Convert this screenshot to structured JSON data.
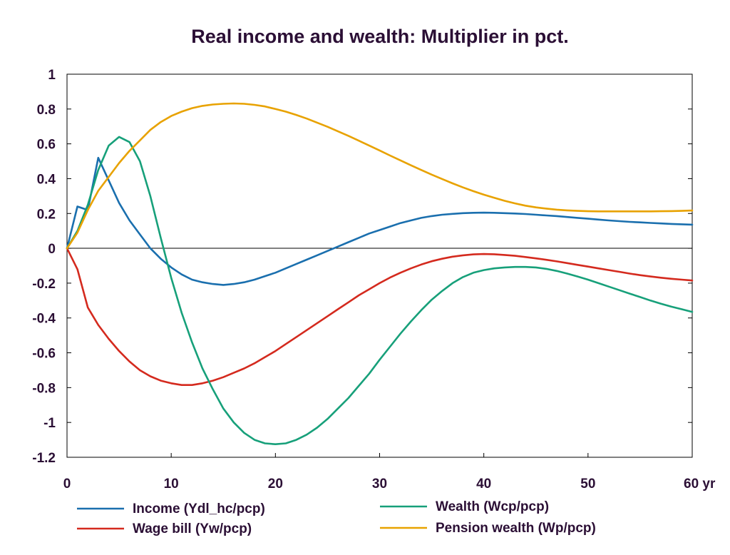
{
  "chart_data": {
    "type": "line",
    "title": "Real income and wealth: Multiplier in pct.",
    "xlabel": "",
    "ylabel": "",
    "xlim": [
      0,
      60
    ],
    "ylim": [
      -1.2,
      1
    ],
    "x_ticks": [
      0,
      10,
      20,
      30,
      40,
      50,
      60
    ],
    "x_tick_labels": [
      "0",
      "10",
      "20",
      "30",
      "40",
      "50",
      "60 yr"
    ],
    "y_ticks": [
      1,
      0.8,
      0.6,
      0.4,
      0.2,
      0,
      -0.2,
      -0.4,
      -0.6,
      -0.8,
      -1,
      -1.2
    ],
    "y_tick_labels": [
      "1",
      "0.8",
      "0.6",
      "0.4",
      "0.2",
      "0",
      "-0.2",
      "-0.4",
      "-0.6",
      "-0.8",
      "-1",
      "-1.2"
    ],
    "grid": false,
    "zero_line": true,
    "legend_position": "bottom",
    "series": [
      {
        "name": "Income (Ydl_hc/pcp)",
        "color": "#1a6fae",
        "x": [
          0,
          1,
          2,
          3,
          4,
          5,
          6,
          7,
          8,
          9,
          10,
          11,
          12,
          13,
          14,
          15,
          16,
          17,
          18,
          19,
          20,
          21,
          22,
          23,
          24,
          25,
          26,
          27,
          28,
          29,
          30,
          31,
          32,
          33,
          34,
          35,
          36,
          37,
          38,
          39,
          40,
          41,
          42,
          43,
          44,
          45,
          46,
          47,
          48,
          49,
          50,
          51,
          52,
          53,
          54,
          55,
          56,
          57,
          58,
          59,
          60
        ],
        "y": [
          0,
          0.24,
          0.22,
          0.52,
          0.39,
          0.26,
          0.16,
          0.08,
          0.0,
          -0.06,
          -0.11,
          -0.15,
          -0.18,
          -0.195,
          -0.205,
          -0.21,
          -0.205,
          -0.195,
          -0.18,
          -0.16,
          -0.14,
          -0.115,
          -0.09,
          -0.065,
          -0.04,
          -0.015,
          0.01,
          0.035,
          0.06,
          0.085,
          0.105,
          0.125,
          0.145,
          0.16,
          0.175,
          0.185,
          0.193,
          0.198,
          0.202,
          0.204,
          0.205,
          0.204,
          0.202,
          0.2,
          0.197,
          0.193,
          0.189,
          0.185,
          0.18,
          0.175,
          0.17,
          0.165,
          0.16,
          0.156,
          0.152,
          0.149,
          0.146,
          0.143,
          0.14,
          0.138,
          0.136
        ]
      },
      {
        "name": "Wage bill (Yw/pcp)",
        "color": "#d42a1e",
        "x": [
          0,
          1,
          2,
          3,
          4,
          5,
          6,
          7,
          8,
          9,
          10,
          11,
          12,
          13,
          14,
          15,
          16,
          17,
          18,
          19,
          20,
          21,
          22,
          23,
          24,
          25,
          26,
          27,
          28,
          29,
          30,
          31,
          32,
          33,
          34,
          35,
          36,
          37,
          38,
          39,
          40,
          41,
          42,
          43,
          44,
          45,
          46,
          47,
          48,
          49,
          50,
          51,
          52,
          53,
          54,
          55,
          56,
          57,
          58,
          59,
          60
        ],
        "y": [
          0,
          -0.12,
          -0.34,
          -0.44,
          -0.52,
          -0.59,
          -0.65,
          -0.7,
          -0.735,
          -0.76,
          -0.775,
          -0.785,
          -0.785,
          -0.775,
          -0.76,
          -0.74,
          -0.715,
          -0.69,
          -0.66,
          -0.625,
          -0.59,
          -0.55,
          -0.51,
          -0.47,
          -0.43,
          -0.39,
          -0.35,
          -0.31,
          -0.27,
          -0.235,
          -0.2,
          -0.168,
          -0.14,
          -0.115,
          -0.093,
          -0.074,
          -0.06,
          -0.048,
          -0.04,
          -0.035,
          -0.033,
          -0.034,
          -0.038,
          -0.043,
          -0.05,
          -0.058,
          -0.066,
          -0.075,
          -0.085,
          -0.095,
          -0.105,
          -0.115,
          -0.125,
          -0.135,
          -0.145,
          -0.154,
          -0.162,
          -0.169,
          -0.175,
          -0.18,
          -0.185
        ]
      },
      {
        "name": "Wealth (Wcp/pcp)",
        "color": "#17a07a",
        "x": [
          0,
          1,
          2,
          3,
          4,
          5,
          6,
          7,
          8,
          9,
          10,
          11,
          12,
          13,
          14,
          15,
          16,
          17,
          18,
          19,
          20,
          21,
          22,
          23,
          24,
          25,
          26,
          27,
          28,
          29,
          30,
          31,
          32,
          33,
          34,
          35,
          36,
          37,
          38,
          39,
          40,
          41,
          42,
          43,
          44,
          45,
          46,
          47,
          48,
          49,
          50,
          51,
          52,
          53,
          54,
          55,
          56,
          57,
          58,
          59,
          60
        ],
        "y": [
          0,
          0.1,
          0.25,
          0.45,
          0.59,
          0.64,
          0.61,
          0.5,
          0.3,
          0.06,
          -0.17,
          -0.37,
          -0.54,
          -0.69,
          -0.81,
          -0.92,
          -1.0,
          -1.06,
          -1.1,
          -1.12,
          -1.125,
          -1.12,
          -1.1,
          -1.07,
          -1.03,
          -0.98,
          -0.92,
          -0.86,
          -0.79,
          -0.72,
          -0.64,
          -0.565,
          -0.49,
          -0.42,
          -0.355,
          -0.295,
          -0.245,
          -0.2,
          -0.165,
          -0.14,
          -0.125,
          -0.115,
          -0.11,
          -0.107,
          -0.107,
          -0.11,
          -0.118,
          -0.13,
          -0.145,
          -0.162,
          -0.18,
          -0.2,
          -0.22,
          -0.24,
          -0.26,
          -0.28,
          -0.3,
          -0.318,
          -0.335,
          -0.35,
          -0.365
        ]
      },
      {
        "name": "Pension wealth (Wp/pcp)",
        "color": "#e8a200",
        "x": [
          0,
          1,
          2,
          3,
          4,
          5,
          6,
          7,
          8,
          9,
          10,
          11,
          12,
          13,
          14,
          15,
          16,
          17,
          18,
          19,
          20,
          21,
          22,
          23,
          24,
          25,
          26,
          27,
          28,
          29,
          30,
          31,
          32,
          33,
          34,
          35,
          36,
          37,
          38,
          39,
          40,
          41,
          42,
          43,
          44,
          45,
          46,
          47,
          48,
          49,
          50,
          51,
          52,
          53,
          54,
          55,
          56,
          57,
          58,
          59,
          60
        ],
        "y": [
          0,
          0.09,
          0.22,
          0.33,
          0.41,
          0.49,
          0.56,
          0.62,
          0.68,
          0.725,
          0.76,
          0.785,
          0.805,
          0.818,
          0.826,
          0.83,
          0.832,
          0.83,
          0.824,
          0.815,
          0.8,
          0.785,
          0.766,
          0.745,
          0.722,
          0.698,
          0.672,
          0.646,
          0.618,
          0.59,
          0.562,
          0.533,
          0.505,
          0.477,
          0.45,
          0.423,
          0.398,
          0.373,
          0.35,
          0.328,
          0.308,
          0.29,
          0.273,
          0.258,
          0.245,
          0.235,
          0.228,
          0.222,
          0.218,
          0.215,
          0.213,
          0.212,
          0.212,
          0.212,
          0.212,
          0.212,
          0.212,
          0.213,
          0.214,
          0.215,
          0.217
        ]
      }
    ]
  }
}
